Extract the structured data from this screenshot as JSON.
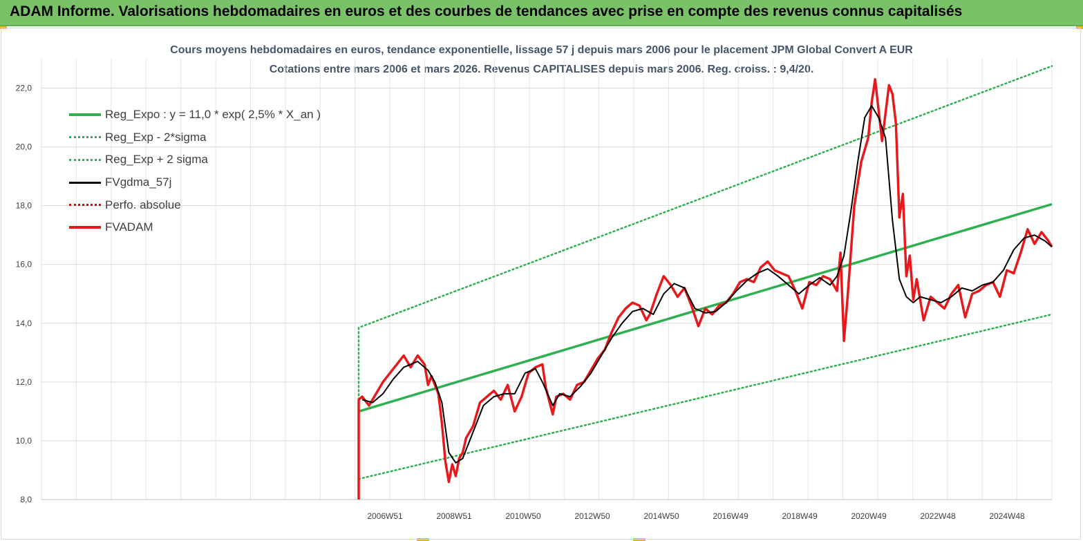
{
  "banner": {
    "title": "ADAM Informe. Valorisations hebdomadaires en euros et des courbes de tendances avec prise en compte des revenus connus capitalisés"
  },
  "chart_data": {
    "type": "line",
    "title": "Cours moyens hebdomadaires en euros, tendance exponentielle, lissage 57 j depuis mars 2006 pour le placement JPM Global Convert A EUR",
    "subtitle": "Cotations entre mars 2006 et mars 2026. Revenus CAPITALISES depuis mars 2006. Reg. croiss. : 9,4/20.",
    "xlabel": "",
    "ylabel": "",
    "ylim": [
      8,
      23
    ],
    "y_ticks": [
      "8,0",
      "10,0",
      "12,0",
      "14,0",
      "16,0",
      "18,0",
      "20,0",
      "22,0"
    ],
    "x_ticks": [
      "2006W51",
      "2008W51",
      "2010W50",
      "2012W50",
      "2014W50",
      "2016W49",
      "2018W49",
      "2020W49",
      "2022W48",
      "2024W48"
    ],
    "xlim": [
      2006.2,
      2026.2
    ],
    "grid": true,
    "legend_position": "top-left",
    "series": [
      {
        "name": "Reg_Expo : y = 11,0 * exp( 2,5% *  X_an )",
        "color": "#2eb050",
        "style": "solid-thick",
        "x": [
          2006.2,
          2026.2
        ],
        "values": [
          11.0,
          18.05
        ]
      },
      {
        "name": "Reg_Exp - 2*sigma",
        "color": "#2eb050",
        "style": "dotted",
        "x": [
          2006.2,
          2026.2
        ],
        "values": [
          8.7,
          14.3
        ]
      },
      {
        "name": "Reg_Exp + 2 sigma",
        "color": "#2eb050",
        "style": "dotted",
        "x": [
          2006.2,
          2006.2,
          2026.2
        ],
        "values": [
          11.4,
          13.85,
          22.75
        ]
      },
      {
        "name": "FVgdma_57j",
        "color": "#000000",
        "style": "solid",
        "x": [
          2006.3,
          2006.6,
          2006.9,
          2007.2,
          2007.5,
          2007.9,
          2008.2,
          2008.4,
          2008.6,
          2008.8,
          2009.0,
          2009.2,
          2009.5,
          2009.8,
          2010.1,
          2010.4,
          2010.7,
          2011.0,
          2011.3,
          2011.5,
          2011.8,
          2012.0,
          2012.3,
          2012.6,
          2012.9,
          2013.2,
          2013.5,
          2013.8,
          2014.1,
          2014.4,
          2014.7,
          2015.0,
          2015.3,
          2015.6,
          2015.9,
          2016.2,
          2016.5,
          2016.8,
          2017.1,
          2017.4,
          2017.7,
          2018.0,
          2018.3,
          2018.6,
          2018.9,
          2019.2,
          2019.5,
          2019.8,
          2020.0,
          2020.2,
          2020.4,
          2020.6,
          2020.8,
          2021.0,
          2021.2,
          2021.4,
          2021.6,
          2021.8,
          2022.0,
          2022.2,
          2022.4,
          2022.7,
          2023.0,
          2023.3,
          2023.6,
          2023.9,
          2024.2,
          2024.5,
          2024.8,
          2025.1,
          2025.4,
          2025.7,
          2026.0,
          2026.2
        ],
        "values": [
          11.4,
          11.3,
          11.6,
          12.1,
          12.5,
          12.7,
          12.4,
          12.0,
          11.3,
          9.6,
          9.25,
          9.4,
          10.3,
          11.2,
          11.5,
          11.6,
          11.6,
          12.3,
          12.45,
          12.0,
          11.2,
          11.6,
          11.5,
          11.85,
          12.3,
          12.9,
          13.5,
          14.0,
          14.4,
          14.5,
          14.3,
          15.0,
          15.35,
          15.2,
          14.5,
          14.35,
          14.4,
          14.7,
          15.1,
          15.45,
          15.7,
          15.85,
          15.6,
          15.3,
          15.0,
          15.3,
          15.55,
          15.3,
          15.6,
          16.3,
          17.8,
          19.5,
          21.0,
          21.4,
          21.0,
          20.3,
          17.5,
          15.5,
          14.9,
          14.7,
          14.9,
          14.8,
          14.7,
          14.9,
          15.2,
          15.1,
          15.3,
          15.4,
          15.8,
          16.5,
          16.9,
          17.0,
          16.8,
          16.6
        ]
      },
      {
        "name": "Perfo. absolue",
        "color": "#e00000",
        "style": "dotted",
        "x": [],
        "values": []
      },
      {
        "name": "FVADAM",
        "color": "#e8191c",
        "style": "solid-thick",
        "x": [
          2006.2,
          2006.2,
          2006.3,
          2006.5,
          2006.7,
          2006.9,
          2007.1,
          2007.3,
          2007.5,
          2007.7,
          2007.9,
          2008.1,
          2008.2,
          2008.3,
          2008.5,
          2008.6,
          2008.7,
          2008.8,
          2008.9,
          2009.0,
          2009.1,
          2009.2,
          2009.3,
          2009.5,
          2009.7,
          2009.9,
          2010.1,
          2010.3,
          2010.5,
          2010.7,
          2010.9,
          2011.1,
          2011.3,
          2011.5,
          2011.6,
          2011.8,
          2011.9,
          2012.1,
          2012.3,
          2012.5,
          2012.7,
          2012.9,
          2013.1,
          2013.3,
          2013.5,
          2013.7,
          2013.9,
          2014.1,
          2014.3,
          2014.5,
          2014.6,
          2014.8,
          2015.0,
          2015.2,
          2015.4,
          2015.6,
          2015.8,
          2016.0,
          2016.2,
          2016.4,
          2016.6,
          2016.8,
          2017.0,
          2017.2,
          2017.4,
          2017.6,
          2017.8,
          2018.0,
          2018.2,
          2018.4,
          2018.6,
          2018.8,
          2019.0,
          2019.2,
          2019.4,
          2019.6,
          2019.8,
          2020.0,
          2020.1,
          2020.2,
          2020.3,
          2020.5,
          2020.7,
          2020.9,
          2021.0,
          2021.1,
          2021.3,
          2021.5,
          2021.6,
          2021.7,
          2021.8,
          2021.9,
          2022.0,
          2022.1,
          2022.2,
          2022.3,
          2022.5,
          2022.7,
          2022.9,
          2023.1,
          2023.3,
          2023.5,
          2023.7,
          2023.9,
          2024.1,
          2024.3,
          2024.5,
          2024.7,
          2024.9,
          2025.1,
          2025.3,
          2025.5,
          2025.7,
          2025.9,
          2026.1,
          2026.2
        ],
        "values": [
          8.0,
          11.4,
          11.5,
          11.2,
          11.6,
          12.0,
          12.3,
          12.6,
          12.9,
          12.5,
          12.9,
          12.6,
          11.9,
          12.2,
          11.6,
          10.6,
          9.3,
          8.6,
          9.2,
          8.8,
          9.4,
          9.6,
          10.1,
          10.5,
          11.3,
          11.5,
          11.7,
          11.4,
          11.9,
          11.0,
          11.5,
          12.3,
          12.5,
          12.6,
          11.8,
          10.9,
          11.5,
          11.6,
          11.4,
          11.9,
          12.0,
          12.4,
          12.8,
          13.1,
          13.7,
          14.2,
          14.5,
          14.7,
          14.6,
          14.1,
          14.3,
          15.0,
          15.6,
          15.3,
          14.9,
          15.2,
          14.6,
          13.9,
          14.5,
          14.3,
          14.6,
          14.7,
          15.0,
          15.4,
          15.5,
          15.4,
          15.9,
          16.1,
          15.8,
          15.7,
          15.6,
          15.1,
          14.5,
          15.4,
          15.3,
          15.6,
          15.5,
          15.1,
          16.4,
          13.4,
          14.8,
          18.0,
          19.5,
          20.3,
          21.5,
          22.3,
          20.2,
          22.1,
          21.8,
          20.8,
          17.6,
          18.4,
          15.6,
          16.3,
          14.8,
          15.5,
          14.1,
          14.9,
          14.7,
          14.5,
          15.0,
          15.3,
          14.2,
          15.0,
          15.1,
          15.3,
          15.4,
          14.9,
          15.8,
          15.7,
          16.4,
          17.2,
          16.7,
          17.1,
          16.8,
          16.6
        ]
      }
    ]
  }
}
